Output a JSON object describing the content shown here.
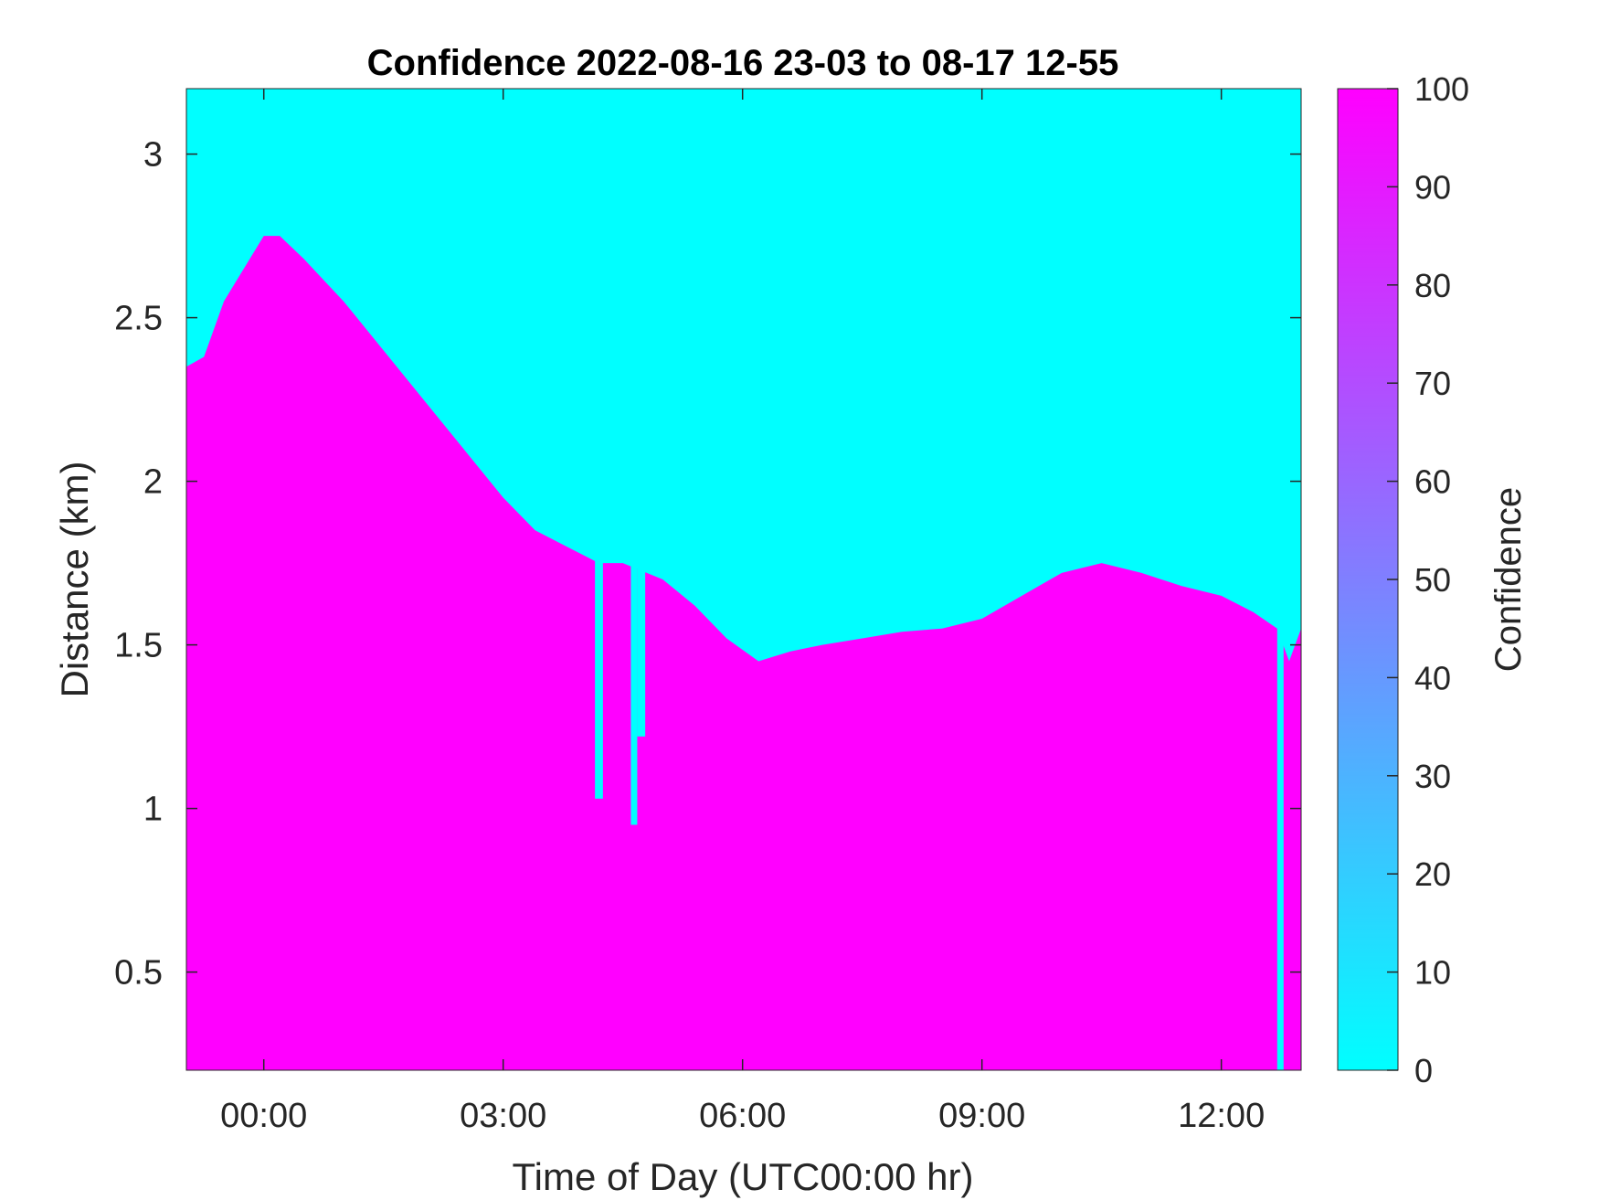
{
  "chart_data": {
    "type": "heatmap",
    "title": "Confidence 2022-08-16 23-03 to 08-17 12-55",
    "xlabel": "Time of Day (UTC00:00 hr)",
    "ylabel": "Distance (km)",
    "xlim_hours": [
      -0.97,
      13.0
    ],
    "ylim": [
      0.2,
      3.2
    ],
    "x_ticks": [
      0,
      3,
      6,
      9,
      12
    ],
    "x_tick_labels": [
      "00:00",
      "03:00",
      "06:00",
      "09:00",
      "12:00"
    ],
    "y_ticks": [
      0.5,
      1,
      1.5,
      2,
      2.5,
      3
    ],
    "y_tick_labels": [
      "0.5",
      "1",
      "1.5",
      "2",
      "2.5",
      "3"
    ],
    "colorbar": {
      "label": "Confidence",
      "range": [
        0,
        100
      ],
      "ticks": [
        0,
        10,
        20,
        30,
        40,
        50,
        60,
        70,
        80,
        90,
        100
      ],
      "tick_labels": [
        "0",
        "10",
        "20",
        "30",
        "40",
        "50",
        "60",
        "70",
        "80",
        "90",
        "100"
      ],
      "low_color": "#00ffff",
      "high_color": "#ff00ff"
    },
    "high_confidence_top_km": {
      "hours": [
        -0.97,
        -0.75,
        -0.5,
        0.0,
        0.2,
        0.5,
        1.0,
        1.5,
        2.0,
        2.5,
        3.0,
        3.4,
        3.8,
        4.2,
        4.5,
        4.8,
        5.0,
        5.4,
        5.8,
        6.2,
        6.6,
        7.0,
        7.5,
        8.0,
        8.5,
        9.0,
        9.5,
        10.0,
        10.5,
        11.0,
        11.5,
        12.0,
        12.4,
        12.7,
        12.85,
        13.0
      ],
      "km": [
        2.35,
        2.38,
        2.55,
        2.75,
        2.75,
        2.68,
        2.55,
        2.4,
        2.25,
        2.1,
        1.95,
        1.85,
        1.8,
        1.75,
        1.75,
        1.72,
        1.7,
        1.62,
        1.52,
        1.45,
        1.48,
        1.5,
        1.52,
        1.54,
        1.55,
        1.58,
        1.65,
        1.72,
        1.75,
        1.72,
        1.68,
        1.65,
        1.6,
        1.55,
        1.45,
        1.55
      ]
    },
    "low_confidence_notches": [
      {
        "hours": [
          4.15,
          4.25
        ],
        "km_bottom": 1.03
      },
      {
        "hours": [
          4.6,
          4.68
        ],
        "km_bottom": 0.95
      },
      {
        "hours": [
          4.68,
          4.78
        ],
        "km_bottom": 1.22
      },
      {
        "hours": [
          12.7,
          12.78
        ],
        "km_bottom": 0.2
      }
    ]
  }
}
